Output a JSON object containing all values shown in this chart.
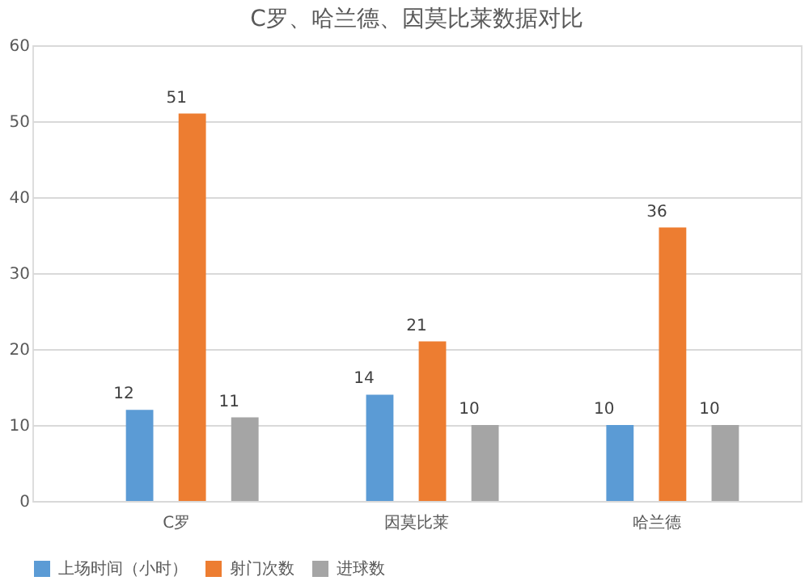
{
  "chart_data": {
    "type": "bar",
    "title": "C罗、哈兰德、因莫比莱数据对比",
    "categories": [
      "C罗",
      "因莫比莱",
      "哈兰德"
    ],
    "series": [
      {
        "name": "上场时间（小时）",
        "color": "#5b9bd5",
        "values": [
          12,
          14,
          10
        ]
      },
      {
        "name": "射门次数",
        "color": "#ed7d31",
        "values": [
          51,
          21,
          36
        ]
      },
      {
        "name": "进球数",
        "color": "#a5a5a5",
        "values": [
          11,
          10,
          10
        ]
      }
    ],
    "ylim": [
      0,
      60
    ],
    "yticks": [
      0,
      10,
      20,
      30,
      40,
      50,
      60
    ],
    "grid": "y",
    "legend": "bottom",
    "data_labels": true
  }
}
